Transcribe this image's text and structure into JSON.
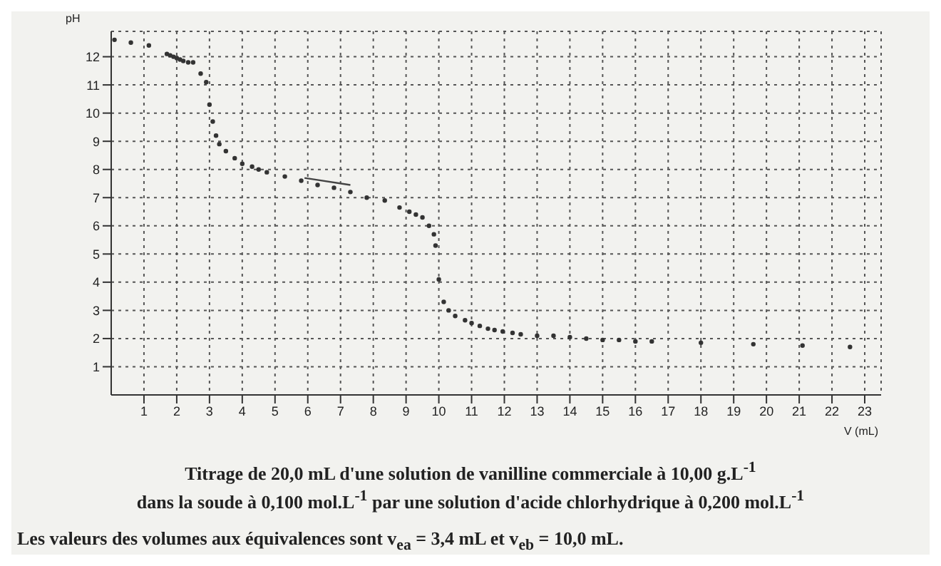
{
  "chart_data": {
    "type": "scatter",
    "xlabel": "V (mL)",
    "ylabel": "pH",
    "xlim": [
      0,
      23.5
    ],
    "ylim": [
      0,
      12.9
    ],
    "xticks": [
      1,
      2,
      3,
      4,
      5,
      6,
      7,
      8,
      9,
      10,
      11,
      12,
      13,
      14,
      15,
      16,
      17,
      18,
      19,
      20,
      21,
      22,
      23
    ],
    "yticks": [
      1,
      2,
      3,
      4,
      5,
      6,
      7,
      8,
      9,
      10,
      11,
      12
    ],
    "grid": true,
    "marker": "circle",
    "legend": false,
    "series": [
      {
        "color": "#333333",
        "x": [
          0.1,
          0.6,
          1.15,
          1.7,
          1.8,
          1.9,
          2.0,
          2.1,
          2.2,
          2.35,
          2.5,
          2.73,
          2.9,
          3.0,
          3.1,
          3.2,
          3.3,
          3.5,
          3.77,
          4.0,
          4.3,
          4.5,
          4.75,
          5.3,
          5.8,
          6.3,
          6.8,
          7.3,
          7.8,
          8.35,
          8.8,
          9.1,
          9.3,
          9.5,
          9.7,
          9.85,
          9.9,
          10.0,
          10.15,
          10.3,
          10.5,
          10.8,
          11.0,
          11.25,
          11.5,
          11.7,
          11.95,
          12.25,
          12.5,
          13.0,
          13.5,
          14.0,
          14.5,
          15.0,
          15.5,
          16.0,
          16.5,
          18.0,
          19.6,
          21.1,
          22.55
        ],
        "values": [
          12.6,
          12.5,
          12.4,
          12.1,
          12.05,
          12.0,
          11.95,
          11.9,
          11.85,
          11.8,
          11.8,
          11.4,
          11.1,
          10.3,
          9.7,
          9.2,
          8.9,
          8.65,
          8.4,
          8.2,
          8.1,
          8.0,
          7.9,
          7.75,
          7.6,
          7.45,
          7.35,
          7.2,
          7.0,
          6.9,
          6.65,
          6.5,
          6.4,
          6.3,
          6.0,
          5.7,
          5.3,
          4.1,
          3.3,
          3.0,
          2.8,
          2.65,
          2.55,
          2.45,
          2.35,
          2.3,
          2.25,
          2.2,
          2.15,
          2.1,
          2.1,
          2.05,
          2.0,
          1.95,
          1.95,
          1.9,
          1.9,
          1.85,
          1.8,
          1.75,
          1.7
        ]
      },
      {
        "type": "line",
        "marker": "none",
        "color": "#444444",
        "x": [
          5.9,
          7.3
        ],
        "values": [
          7.7,
          7.45
        ]
      }
    ],
    "annotations": [
      "Titrage de 20,0 mL d'une solution de vanilline commerciale à 10,00 g.L$^{-1}$",
      "dans la soude à 0,100 mol.L$^{-1}$ par une solution d'acide chlorhydrique à 0,200 mol.L$^{-1}$",
      "Les valeurs des volumes aux équivalences sont v$_{ea}$ = 3,4 mL et v$_{eb}$ = 10,0 mL."
    ]
  }
}
